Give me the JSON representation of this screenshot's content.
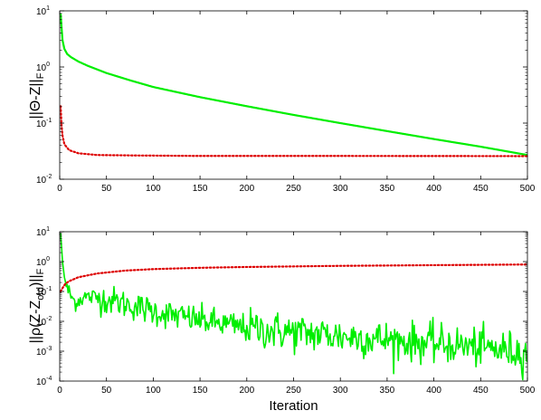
{
  "chart_data": [
    {
      "type": "line",
      "ylabel": {
        "main": "||Θ-Z||",
        "sub": "F"
      },
      "xlabel": "",
      "yscale": "log",
      "xlim": [
        0,
        500
      ],
      "ylim": [
        0.01,
        10
      ],
      "x_ticks": [
        "0",
        "50",
        "100",
        "150",
        "200",
        "250",
        "300",
        "350",
        "400",
        "450",
        "500"
      ],
      "y_ticks": [
        {
          "base": "10",
          "exp": "-2"
        },
        {
          "base": "10",
          "exp": "-1"
        },
        {
          "base": "10",
          "exp": "0"
        },
        {
          "base": "10",
          "exp": "1"
        }
      ],
      "grid": false,
      "series": [
        {
          "color": "#00ee00",
          "style": "solid",
          "points": [
            [
              1,
              9
            ],
            [
              2,
              5
            ],
            [
              3,
              3
            ],
            [
              5,
              2.1
            ],
            [
              8,
              1.7
            ],
            [
              12,
              1.5
            ],
            [
              20,
              1.25
            ],
            [
              30,
              1.05
            ],
            [
              50,
              0.78
            ],
            [
              75,
              0.58
            ],
            [
              100,
              0.44
            ],
            [
              150,
              0.29
            ],
            [
              200,
              0.2
            ],
            [
              250,
              0.14
            ],
            [
              300,
              0.1
            ],
            [
              350,
              0.072
            ],
            [
              400,
              0.052
            ],
            [
              450,
              0.038
            ],
            [
              500,
              0.027
            ]
          ]
        },
        {
          "color": "#dd0000",
          "style": "dotted",
          "points": [
            [
              1,
              0.2
            ],
            [
              2,
              0.09
            ],
            [
              3,
              0.06
            ],
            [
              5,
              0.042
            ],
            [
              10,
              0.033
            ],
            [
              20,
              0.029
            ],
            [
              40,
              0.027
            ],
            [
              80,
              0.0265
            ],
            [
              150,
              0.026
            ],
            [
              300,
              0.026
            ],
            [
              500,
              0.0258
            ]
          ]
        }
      ]
    },
    {
      "type": "line",
      "ylabel": {
        "main": "||ρ(Z-Z",
        "sub": "old",
        "close": ")||",
        "sub2": "F"
      },
      "xlabel": "Iteration",
      "yscale": "log",
      "xlim": [
        0,
        500
      ],
      "ylim": [
        0.0001,
        10
      ],
      "x_ticks": [
        "0",
        "50",
        "100",
        "150",
        "200",
        "250",
        "300",
        "350",
        "400",
        "450",
        "500"
      ],
      "y_ticks": [
        {
          "base": "10",
          "exp": "-4"
        },
        {
          "base": "10",
          "exp": "-3"
        },
        {
          "base": "10",
          "exp": "-2"
        },
        {
          "base": "10",
          "exp": "-1"
        },
        {
          "base": "10",
          "exp": "0"
        },
        {
          "base": "10",
          "exp": "1"
        }
      ],
      "grid": false,
      "series": [
        {
          "color": "#00ee00",
          "style": "solid",
          "noise": true,
          "points": [
            [
              1,
              9
            ],
            [
              3,
              1
            ],
            [
              5,
              0.3
            ],
            [
              8,
              0.12
            ],
            [
              12,
              0.07
            ],
            [
              16,
              0.045
            ],
            [
              20,
              0.05
            ],
            [
              25,
              0.065
            ],
            [
              35,
              0.065
            ],
            [
              50,
              0.055
            ],
            [
              75,
              0.035
            ],
            [
              100,
              0.022
            ],
            [
              125,
              0.015
            ],
            [
              150,
              0.011
            ],
            [
              175,
              0.008
            ],
            [
              200,
              0.006
            ],
            [
              225,
              0.005
            ],
            [
              250,
              0.0042
            ],
            [
              275,
              0.0038
            ],
            [
              300,
              0.0032
            ],
            [
              325,
              0.0028
            ],
            [
              350,
              0.0024
            ],
            [
              375,
              0.0021
            ],
            [
              400,
              0.0018
            ],
            [
              425,
              0.0016
            ],
            [
              450,
              0.0013
            ],
            [
              475,
              0.0011
            ],
            [
              500,
              0.0009
            ]
          ]
        },
        {
          "color": "#dd0000",
          "style": "dotted",
          "points": [
            [
              1,
              0.1
            ],
            [
              3,
              0.13
            ],
            [
              6,
              0.18
            ],
            [
              10,
              0.22
            ],
            [
              20,
              0.3
            ],
            [
              40,
              0.4
            ],
            [
              70,
              0.5
            ],
            [
              100,
              0.56
            ],
            [
              150,
              0.62
            ],
            [
              200,
              0.66
            ],
            [
              300,
              0.72
            ],
            [
              400,
              0.76
            ],
            [
              500,
              0.8
            ]
          ]
        }
      ]
    }
  ]
}
